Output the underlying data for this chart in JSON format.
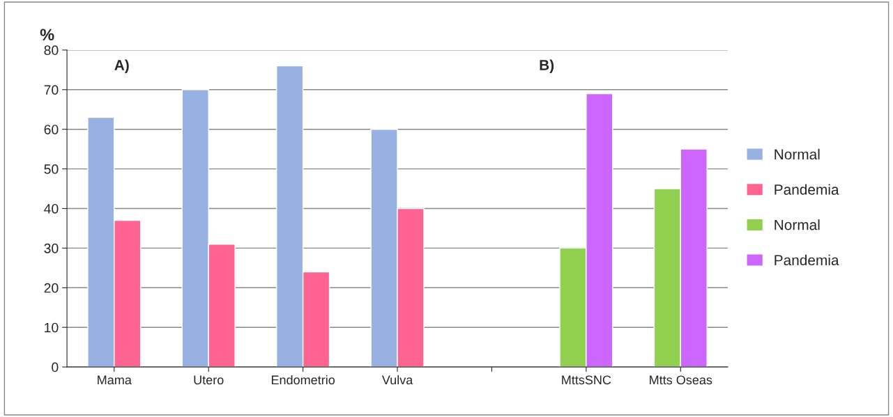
{
  "chart_data": {
    "type": "bar",
    "ylabel": "%",
    "categories": [
      "Mama",
      "Utero",
      "Endometrio",
      "Vulva",
      null,
      "MttsSNC",
      "Mtts Oseas"
    ],
    "series": [
      {
        "name": "Normal",
        "color": "#97b1e3",
        "values": [
          63,
          70,
          76,
          60,
          null,
          null,
          null
        ]
      },
      {
        "name": "Pandemia",
        "color": "#ff6392",
        "values": [
          37,
          31,
          24,
          40,
          null,
          null,
          null
        ]
      },
      {
        "name": "Normal",
        "color": "#92d050",
        "values": [
          null,
          null,
          null,
          null,
          null,
          30,
          45
        ]
      },
      {
        "name": "Pandemia",
        "color": "#cc66ff",
        "values": [
          null,
          null,
          null,
          null,
          null,
          69,
          55
        ]
      }
    ],
    "annotations": [
      "A)",
      "B)"
    ],
    "ylim": [
      0,
      80
    ],
    "yticks": [
      0,
      10,
      20,
      30,
      40,
      50,
      60,
      70,
      80
    ],
    "grid": "y",
    "legend": "right"
  }
}
